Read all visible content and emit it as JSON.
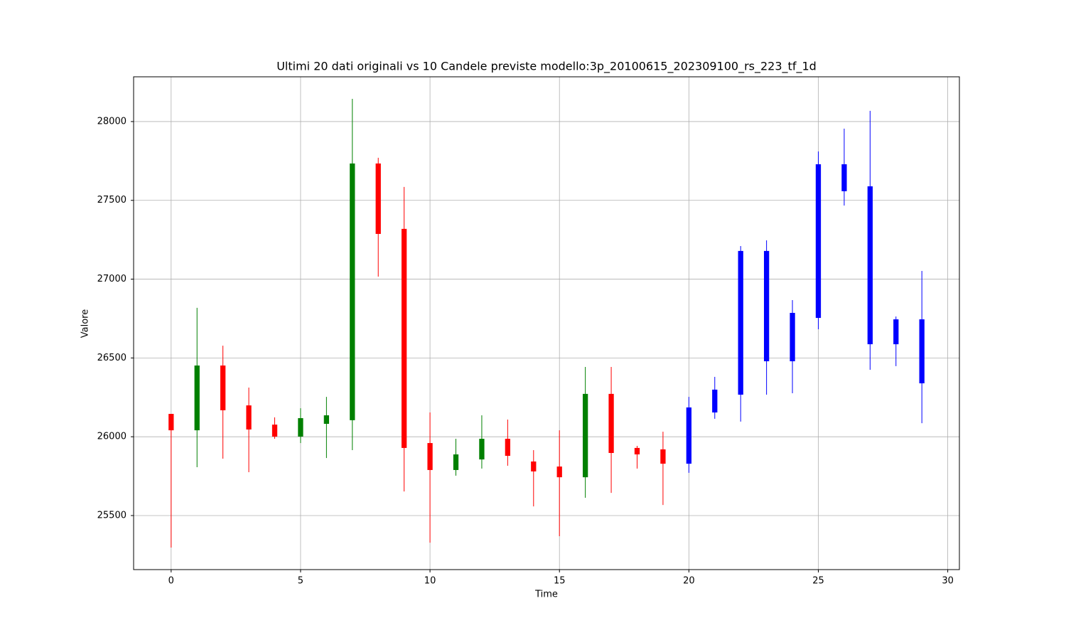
{
  "chart_data": {
    "type": "candlestick",
    "title": "Ultimi 20 dati originali vs 10 Candele previste modello:3p_20100615_202309100_rs_223_tf_1d",
    "xlabel": "Time",
    "ylabel": "Valore",
    "x": [
      0,
      1,
      2,
      3,
      4,
      5,
      6,
      7,
      8,
      9,
      10,
      11,
      12,
      13,
      14,
      15,
      16,
      17,
      18,
      19,
      20,
      21,
      22,
      23,
      24,
      25,
      26,
      27,
      28,
      29
    ],
    "open": [
      26145,
      26041,
      26452,
      26199,
      26077,
      26001,
      26082,
      26105,
      27734,
      27319,
      25960,
      25789,
      25856,
      25987,
      25843,
      25811,
      25743,
      26272,
      25929,
      25920,
      25829,
      26154,
      26267,
      27179,
      26479,
      26754,
      27729,
      27589,
      26587,
      26745
    ],
    "high": [
      26145,
      26818,
      26578,
      26312,
      26123,
      26181,
      26253,
      28144,
      27770,
      27585,
      26154,
      25987,
      26136,
      26109,
      25915,
      26041,
      26443,
      26443,
      25942,
      26032,
      26253,
      26380,
      27210,
      27246,
      26867,
      27810,
      27955,
      28068,
      26763,
      27052
    ],
    "low": [
      25297,
      25807,
      25861,
      25775,
      25987,
      25960,
      25865,
      25915,
      27016,
      25653,
      25328,
      25753,
      25798,
      25816,
      25558,
      25369,
      25613,
      25644,
      25798,
      25567,
      25771,
      26114,
      26096,
      26267,
      26276,
      26682,
      27467,
      26425,
      26448,
      26086
    ],
    "close": [
      26041,
      26452,
      26168,
      26046,
      26001,
      26118,
      26136,
      27734,
      27287,
      25929,
      25789,
      25888,
      25987,
      25879,
      25780,
      25743,
      26272,
      25897,
      25888,
      25829,
      26186,
      26299,
      27179,
      26479,
      26786,
      27729,
      27558,
      26587,
      26745,
      26339
    ],
    "colors": [
      "red",
      "green",
      "red",
      "red",
      "red",
      "green",
      "green",
      "green",
      "red",
      "red",
      "red",
      "green",
      "green",
      "red",
      "red",
      "red",
      "green",
      "red",
      "red",
      "red",
      "blue",
      "blue",
      "blue",
      "blue",
      "blue",
      "blue",
      "blue",
      "blue",
      "blue",
      "blue"
    ],
    "xlim": [
      -1.45,
      30.45
    ],
    "ylim": [
      25157,
      28284
    ],
    "xticks": [
      0,
      5,
      10,
      15,
      20,
      25,
      30
    ],
    "yticks": [
      25500,
      26000,
      26500,
      27000,
      27500,
      28000
    ],
    "grid": true
  }
}
